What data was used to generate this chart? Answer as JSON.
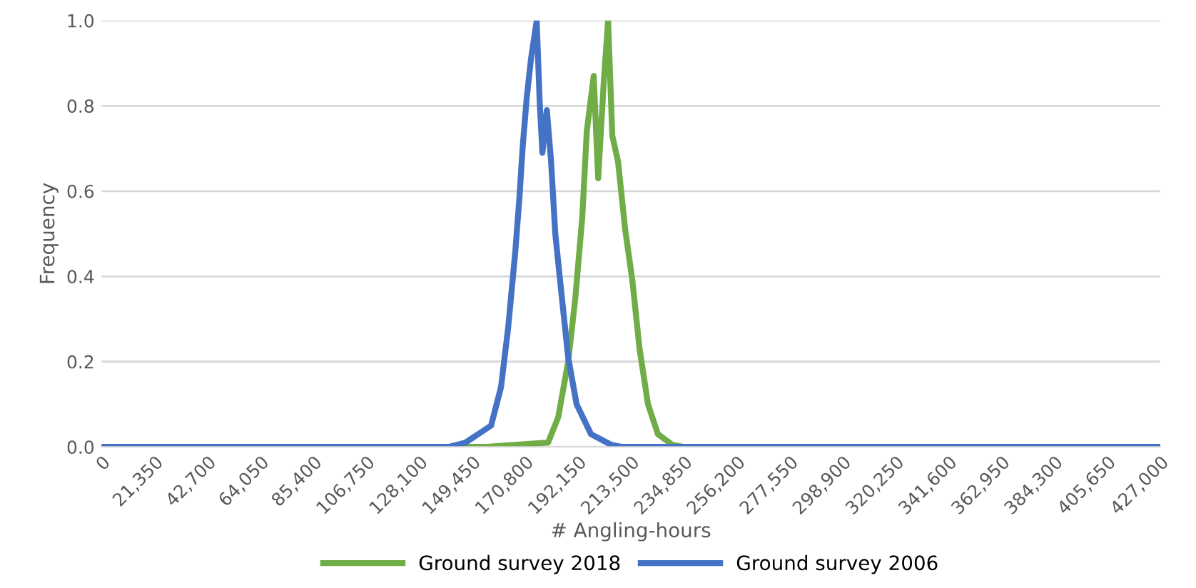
{
  "chart_data": {
    "type": "line",
    "xlabel": "# Angling-hours",
    "ylabel": "Frequency",
    "xlim": [
      0,
      427000
    ],
    "ylim": [
      0,
      1.0
    ],
    "xticks": [
      0,
      {
        "value": 21350,
        "label": "21,350"
      },
      {
        "value": 42700,
        "label": "42,700"
      },
      {
        "value": 64050,
        "label": "64,050"
      },
      {
        "value": 85400,
        "label": "85,400"
      },
      {
        "value": 106750,
        "label": "106,750"
      },
      {
        "value": 128100,
        "label": "128,100"
      },
      {
        "value": 149450,
        "label": "149,450"
      },
      {
        "value": 170800,
        "label": "170,800"
      },
      {
        "value": 192150,
        "label": "192,150"
      },
      {
        "value": 213500,
        "label": "213,500"
      },
      {
        "value": 234850,
        "label": "234,850"
      },
      {
        "value": 256200,
        "label": "256,200"
      },
      {
        "value": 277550,
        "label": "277,550"
      },
      {
        "value": 298900,
        "label": "298,900"
      },
      {
        "value": 320250,
        "label": "320,250"
      },
      {
        "value": 341600,
        "label": "341,600"
      },
      {
        "value": 362950,
        "label": "362,950"
      },
      {
        "value": 384300,
        "label": "384,300"
      },
      {
        "value": 405650,
        "label": "405,650"
      },
      {
        "value": 427000,
        "label": "427,000"
      }
    ],
    "yticks": [
      {
        "value": 0,
        "label": "0.0"
      },
      {
        "value": 0.2,
        "label": "0.2"
      },
      {
        "value": 0.4,
        "label": "0.4"
      },
      {
        "value": 0.6,
        "label": "0.6"
      },
      {
        "value": 0.8,
        "label": "0.8"
      },
      {
        "value": 1.0,
        "label": "1.0"
      }
    ],
    "grid": "y",
    "legend": "bottom",
    "marker": "none",
    "line_style": "solid",
    "series": [
      {
        "name": "Ground survey 2018",
        "color": "#70ad47",
        "x": [
          0,
          155400,
          180100,
          184200,
          188200,
          191100,
          193900,
          195700,
          198500,
          200300,
          202600,
          204300,
          206000,
          208300,
          211200,
          214100,
          217000,
          220400,
          224400,
          230200,
          235000,
          427000
        ],
        "values": [
          0,
          0,
          0.01,
          0.07,
          0.2,
          0.35,
          0.54,
          0.74,
          0.87,
          0.63,
          0.86,
          1.0,
          0.73,
          0.67,
          0.51,
          0.39,
          0.23,
          0.1,
          0.03,
          0.005,
          0,
          0
        ]
      },
      {
        "name": "Ground survey 2006",
        "color": "#4472c4",
        "x": [
          0,
          140000,
          146750,
          157100,
          161100,
          164000,
          166900,
          168600,
          169800,
          171500,
          173200,
          175500,
          176700,
          177800,
          179600,
          181300,
          183000,
          185300,
          188200,
          191600,
          197400,
          205500,
          210000,
          427000
        ],
        "values": [
          0,
          0,
          0.01,
          0.05,
          0.14,
          0.28,
          0.46,
          0.59,
          0.7,
          0.82,
          0.91,
          1.0,
          0.81,
          0.69,
          0.79,
          0.67,
          0.5,
          0.37,
          0.21,
          0.1,
          0.03,
          0.005,
          0,
          0
        ]
      }
    ]
  }
}
